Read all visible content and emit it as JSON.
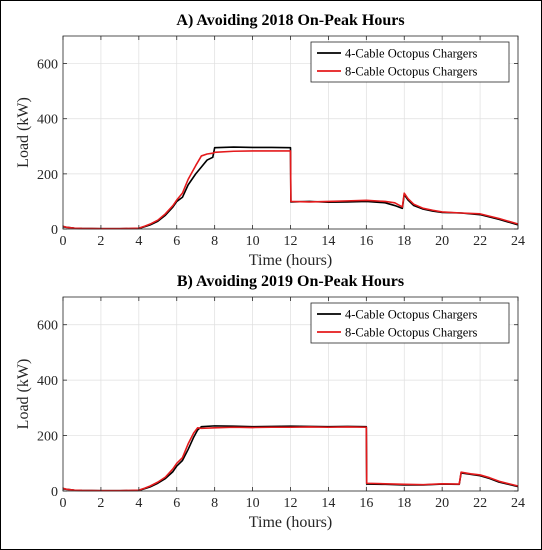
{
  "chart_data": [
    {
      "type": "line",
      "title": "A) Avoiding 2018 On-Peak Hours",
      "xlabel": "Time (hours)",
      "ylabel": "Load (kW)",
      "xlim": [
        0,
        24
      ],
      "ylim": [
        0,
        700
      ],
      "xticks": [
        0,
        2,
        4,
        6,
        8,
        10,
        12,
        14,
        16,
        18,
        20,
        22,
        24
      ],
      "yticks": [
        0,
        200,
        400,
        600
      ],
      "grid": true,
      "legend_position": "top-right",
      "series": [
        {
          "name": "4-Cable Octopus Chargers",
          "color": "#000000",
          "x": [
            0,
            0.2,
            0.6,
            1,
            2,
            3,
            4,
            4.3,
            4.6,
            5,
            5.4,
            5.8,
            6,
            6.3,
            6.6,
            7,
            7.3,
            7.6,
            7.9,
            8,
            9,
            10,
            11,
            12,
            12.02,
            13,
            14,
            15,
            16,
            17,
            17.5,
            17.9,
            18,
            18.2,
            18.5,
            19,
            19.5,
            20,
            21,
            22,
            23,
            24
          ],
          "y": [
            8,
            6,
            3,
            2,
            1,
            1,
            2,
            8,
            15,
            28,
            50,
            80,
            100,
            115,
            160,
            200,
            225,
            250,
            260,
            295,
            297,
            296,
            296,
            295,
            98,
            100,
            97,
            98,
            100,
            95,
            85,
            75,
            125,
            105,
            85,
            72,
            65,
            60,
            58,
            52,
            35,
            15
          ]
        },
        {
          "name": "8-Cable Octopus Chargers",
          "color": "#e41a1c",
          "x": [
            0,
            0.2,
            0.6,
            1,
            2,
            3,
            4,
            4.3,
            4.6,
            5,
            5.4,
            5.8,
            6,
            6.3,
            6.6,
            7,
            7.3,
            7.6,
            7.9,
            8,
            9,
            10,
            11,
            12,
            12.02,
            13,
            14,
            15,
            16,
            17,
            17.5,
            17.9,
            18,
            18.2,
            18.5,
            19,
            19.5,
            20,
            21,
            22,
            23,
            24
          ],
          "y": [
            10,
            6,
            3,
            2,
            1,
            1,
            3,
            10,
            18,
            32,
            55,
            85,
            105,
            130,
            180,
            230,
            265,
            272,
            275,
            278,
            282,
            283,
            283,
            283,
            100,
            98,
            100,
            102,
            104,
            100,
            95,
            80,
            130,
            110,
            90,
            75,
            68,
            62,
            58,
            55,
            38,
            18
          ]
        }
      ]
    },
    {
      "type": "line",
      "title": "B) Avoiding 2019 On-Peak Hours",
      "xlabel": "Time (hours)",
      "ylabel": "Load (kW)",
      "xlim": [
        0,
        24
      ],
      "ylim": [
        0,
        700
      ],
      "xticks": [
        0,
        2,
        4,
        6,
        8,
        10,
        12,
        14,
        16,
        18,
        20,
        22,
        24
      ],
      "yticks": [
        0,
        200,
        400,
        600
      ],
      "grid": true,
      "legend_position": "top-right",
      "series": [
        {
          "name": "4-Cable Octopus Chargers",
          "color": "#000000",
          "x": [
            0,
            0.2,
            0.6,
            1,
            2,
            3,
            4,
            4.3,
            4.6,
            5,
            5.4,
            5.8,
            6,
            6.3,
            6.6,
            6.9,
            7.1,
            7.3,
            8,
            9,
            10,
            11,
            12,
            13,
            14,
            15,
            16,
            16.02,
            17,
            18,
            19,
            20,
            20.9,
            21,
            21.5,
            22,
            22.5,
            23,
            24
          ],
          "y": [
            8,
            6,
            3,
            2,
            1,
            1,
            2,
            8,
            15,
            28,
            45,
            70,
            90,
            110,
            150,
            195,
            220,
            232,
            235,
            234,
            232,
            233,
            234,
            233,
            232,
            233,
            232,
            25,
            24,
            22,
            22,
            25,
            24,
            65,
            60,
            55,
            45,
            32,
            16
          ]
        },
        {
          "name": "8-Cable Octopus Chargers",
          "color": "#e41a1c",
          "x": [
            0,
            0.2,
            0.6,
            1,
            2,
            3,
            4,
            4.3,
            4.6,
            5,
            5.4,
            5.8,
            6,
            6.3,
            6.6,
            6.9,
            7.1,
            7.3,
            8,
            9,
            10,
            11,
            12,
            13,
            14,
            15,
            16,
            16.02,
            17,
            18,
            19,
            20,
            20.9,
            21,
            21.5,
            22,
            22.5,
            23,
            24
          ],
          "y": [
            10,
            6,
            3,
            2,
            1,
            1,
            3,
            10,
            18,
            32,
            50,
            80,
            100,
            120,
            170,
            210,
            228,
            226,
            228,
            230,
            229,
            230,
            230,
            231,
            230,
            231,
            230,
            28,
            26,
            24,
            23,
            26,
            25,
            68,
            62,
            58,
            48,
            35,
            18
          ]
        }
      ]
    }
  ]
}
